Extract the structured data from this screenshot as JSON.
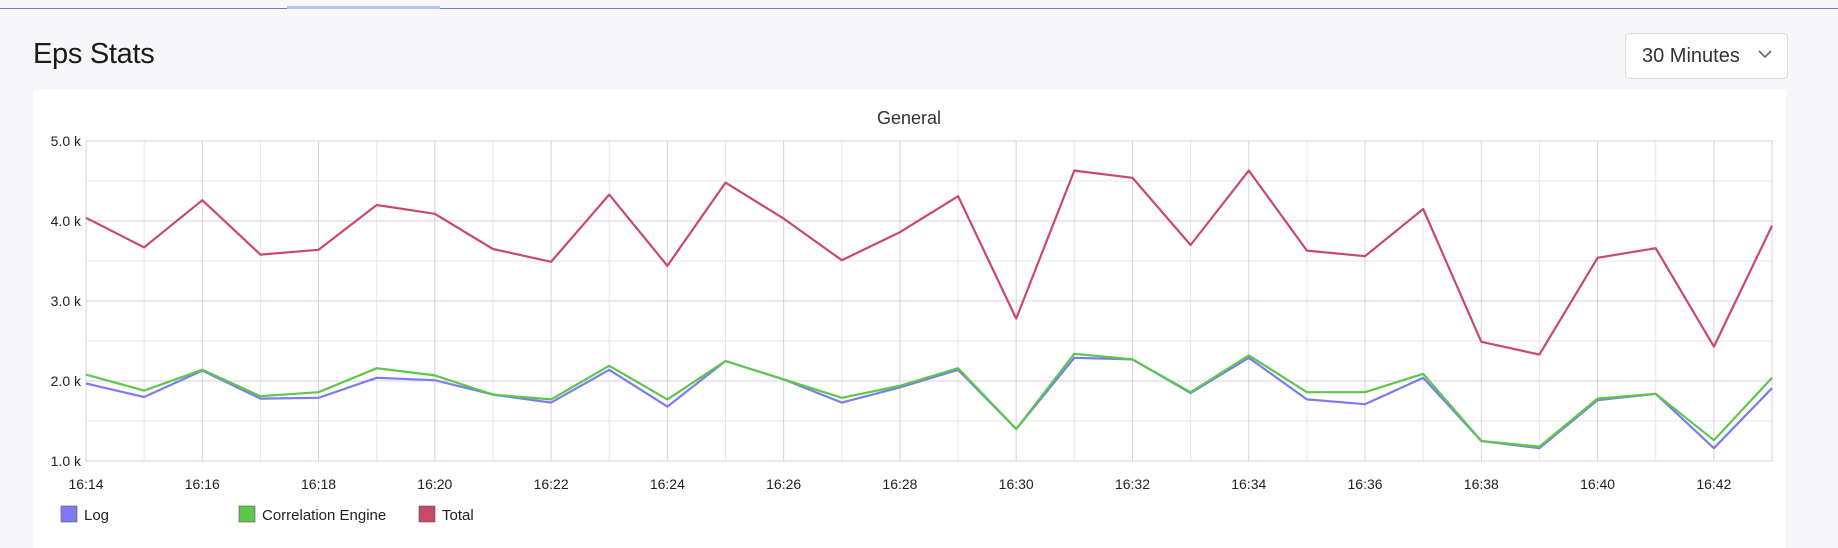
{
  "panel": {
    "title": "Eps Stats"
  },
  "range_select": {
    "value": "30 Minutes"
  },
  "colors": {
    "log": "#7d7bf2",
    "correlation": "#5cc74a",
    "total": "#c9496a",
    "grid": "#ebe4ef",
    "grid_major": "#dccde0"
  },
  "chart_data": {
    "type": "line",
    "title": "General",
    "x": [
      "16:14",
      "16:15",
      "16:16",
      "16:17",
      "16:18",
      "16:19",
      "16:20",
      "16:21",
      "16:22",
      "16:23",
      "16:24",
      "16:25",
      "16:26",
      "16:27",
      "16:28",
      "16:29",
      "16:30",
      "16:31",
      "16:32",
      "16:33",
      "16:34",
      "16:35",
      "16:36",
      "16:37",
      "16:38",
      "16:39",
      "16:40",
      "16:41",
      "16:42",
      "16:43"
    ],
    "x_tick_labels": [
      "16:14",
      "16:16",
      "16:18",
      "16:20",
      "16:22",
      "16:24",
      "16:26",
      "16:28",
      "16:30",
      "16:32",
      "16:34",
      "16:36",
      "16:38",
      "16:40",
      "16:42"
    ],
    "y_tick_labels": [
      "5.0 k",
      "4.0 k",
      "3.0 k",
      "2.0 k",
      "1.0 k"
    ],
    "y_ticks": [
      5000,
      4000,
      3000,
      2000,
      1000
    ],
    "ylim": [
      1000,
      5000
    ],
    "grid": true,
    "legend_position": "bottom-left",
    "series": [
      {
        "name": "Log",
        "color": "#7d7bf2",
        "values": [
          1970,
          1800,
          2130,
          1780,
          1790,
          2040,
          2010,
          1830,
          1730,
          2140,
          1680,
          2250,
          2020,
          1730,
          1920,
          2140,
          1400,
          2290,
          2270,
          1850,
          2290,
          1770,
          1710,
          2040,
          1250,
          1160,
          1760,
          1840,
          1160,
          1910
        ]
      },
      {
        "name": "Correlation Engine",
        "color": "#5cc74a",
        "values": [
          2080,
          1880,
          2140,
          1810,
          1860,
          2160,
          2070,
          1830,
          1770,
          2190,
          1770,
          2250,
          2020,
          1790,
          1940,
          2160,
          1400,
          2340,
          2270,
          1860,
          2320,
          1860,
          1860,
          2090,
          1250,
          1180,
          1780,
          1840,
          1260,
          2040
        ]
      },
      {
        "name": "Total",
        "color": "#c9496a",
        "values": [
          4040,
          3670,
          4260,
          3580,
          3640,
          4200,
          4090,
          3650,
          3490,
          4330,
          3440,
          4480,
          4030,
          3510,
          3860,
          4310,
          2780,
          4630,
          4540,
          3700,
          4630,
          3630,
          3560,
          4150,
          2490,
          2330,
          3540,
          3660,
          2430,
          3940
        ]
      }
    ]
  }
}
